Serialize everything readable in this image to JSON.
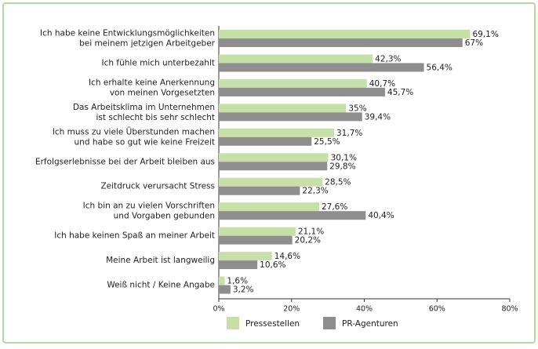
{
  "chart_data": {
    "type": "hbar",
    "categories": [
      [
        "Ich habe keine Entwicklungsmöglichkeiten",
        "bei meinem jetzigen Arbeitgeber"
      ],
      [
        "Ich fühle mich unterbezahlt"
      ],
      [
        "Ich erhalte keine Anerkennung",
        "von meinen Vorgesetzten"
      ],
      [
        "Das Arbeitsklima im Unternehmen",
        "ist schlecht bis sehr schlecht"
      ],
      [
        "Ich muss zu viele Überstunden machen",
        "und habe so gut wie keine Freizeit"
      ],
      [
        "Erfolgserlebnisse bei der Arbeit bleiben aus"
      ],
      [
        "Zeitdruck verursacht Stress"
      ],
      [
        "Ich bin an zu vielen Vorschriften",
        "und Vorgaben gebunden"
      ],
      [
        "Ich habe keinen Spaß an meiner Arbeit"
      ],
      [
        "Meine Arbeit ist langweilig"
      ],
      [
        "Weiß nicht / Keine Angabe"
      ]
    ],
    "series": [
      {
        "name": "Pressestellen",
        "color": "#c6e0a8",
        "values": [
          69.1,
          42.3,
          40.7,
          35,
          31.7,
          30.1,
          28.5,
          27.6,
          21.1,
          14.6,
          1.6
        ],
        "value_labels": [
          "69,1%",
          "42,3%",
          "40,7%",
          "35%",
          "31,7%",
          "30,1%",
          "28,5%",
          "27,6%",
          "21,1%",
          "14,6%",
          "1,6%"
        ]
      },
      {
        "name": "PR-Agenturen",
        "color": "#8e8e8e",
        "values": [
          67,
          56.4,
          45.7,
          39.4,
          25.5,
          29.8,
          22.3,
          40.4,
          20.2,
          10.6,
          3.2
        ],
        "value_labels": [
          "67%",
          "56,4%",
          "45,7%",
          "39,4%",
          "25,5%",
          "29,8%",
          "22,3%",
          "40,4%",
          "20,2%",
          "10,6%",
          "3,2%"
        ]
      }
    ],
    "xlim": [
      0,
      80
    ],
    "xticks": [
      {
        "value": 0,
        "label": "0%"
      },
      {
        "value": 20,
        "label": "20%"
      },
      {
        "value": 40,
        "label": "40%"
      },
      {
        "value": 60,
        "label": "60%"
      },
      {
        "value": 80,
        "label": "80%"
      }
    ],
    "grid": false,
    "legend": "bottom"
  }
}
